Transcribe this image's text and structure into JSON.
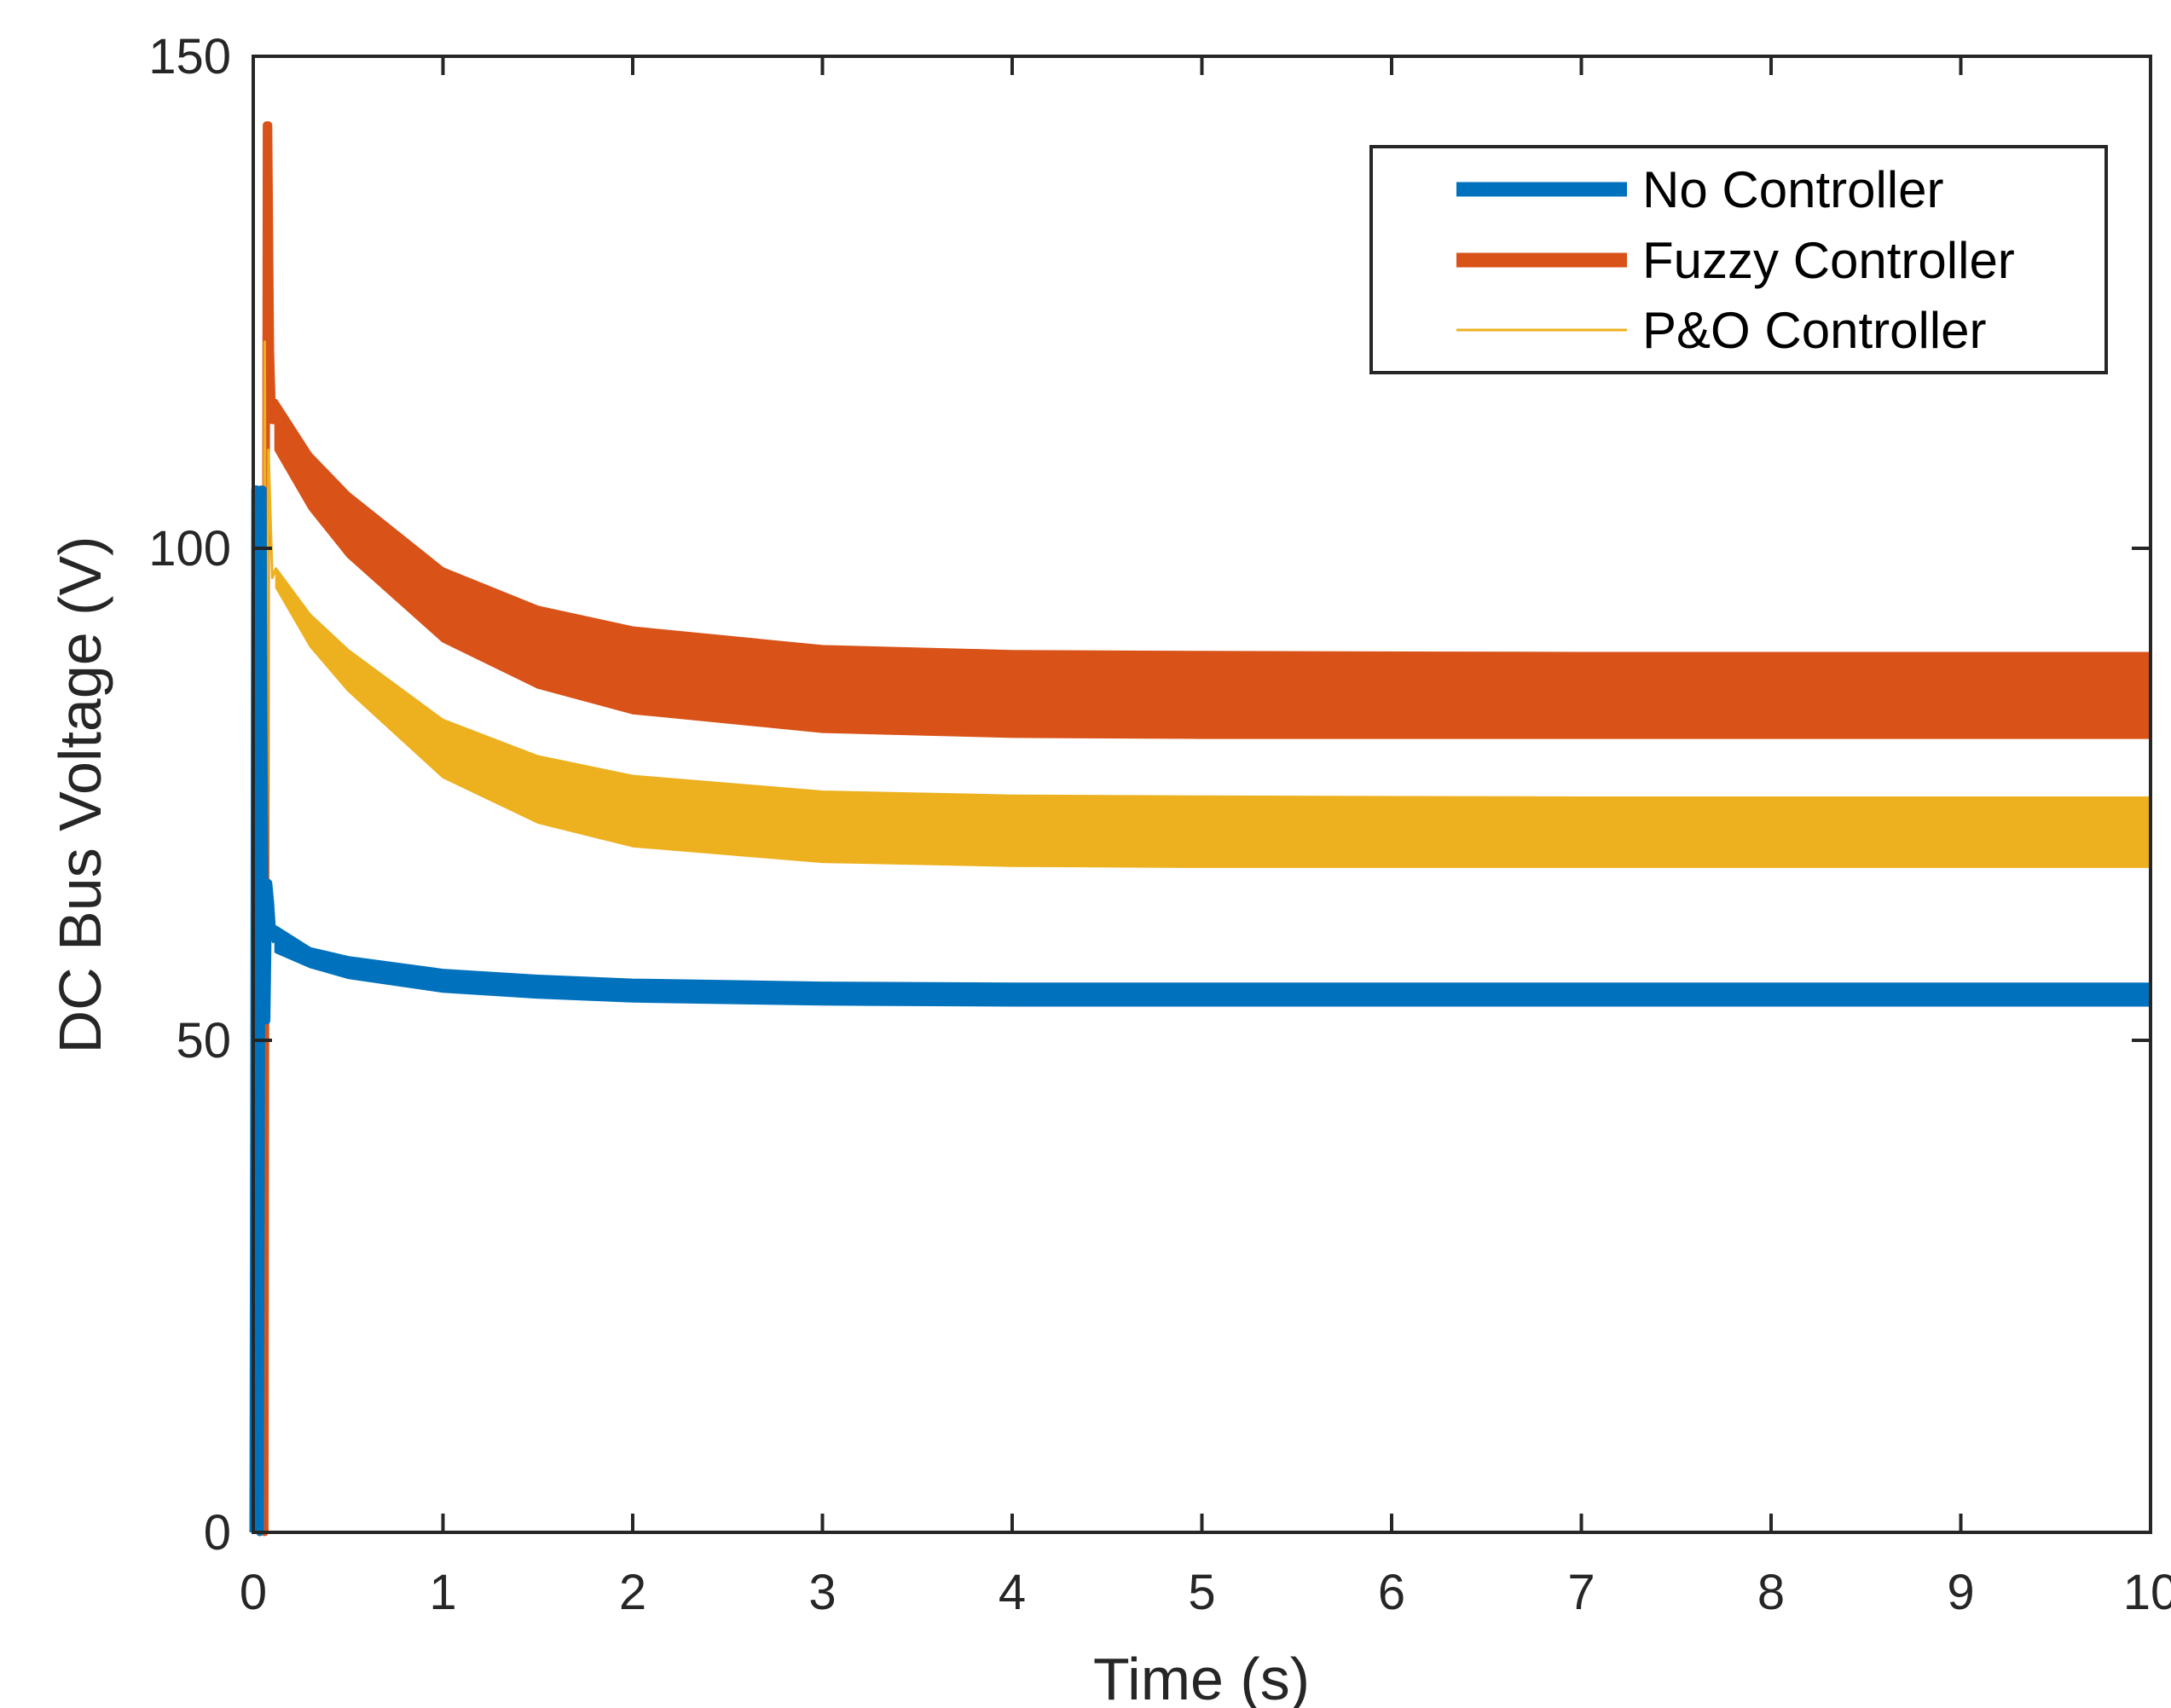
{
  "chart_data": {
    "type": "line",
    "title": "",
    "xlabel": "Time (s)",
    "ylabel": "DC Bus Voltage (V)",
    "xlim": [
      0,
      10
    ],
    "ylim": [
      0,
      150
    ],
    "xticks": [
      "0",
      "1",
      "2",
      "3",
      "4",
      "5",
      "6",
      "7",
      "8",
      "9",
      "10"
    ],
    "yticks": [
      "0",
      "50",
      "100",
      "150"
    ],
    "grid": false,
    "legend_position": "top-right",
    "series": [
      {
        "name": "No Controller",
        "color": "#0072BD",
        "style": "thick",
        "spike": {
          "t": [
            0.0,
            0.01,
            0.02,
            0.035,
            0.05,
            0.06,
            0.07,
            0.08,
            0.09,
            0.1,
            0.12
          ],
          "v": [
            0,
            106,
            106,
            0,
            106,
            60,
            52,
            66,
            64,
            61,
            60
          ]
        },
        "band": {
          "t": [
            0.12,
            0.3,
            0.5,
            1,
            1.5,
            2,
            3,
            4,
            5,
            7,
            10
          ],
          "upper": [
            61.5,
            59.3,
            58.4,
            57.1,
            56.5,
            56.1,
            55.8,
            55.7,
            55.7,
            55.7,
            55.7
          ],
          "lower": [
            59.0,
            57.5,
            56.4,
            55.0,
            54.4,
            54.0,
            53.7,
            53.6,
            53.6,
            53.6,
            53.6
          ]
        }
      },
      {
        "name": "Fuzzy Controller",
        "color": "#D95319",
        "style": "thick",
        "spike": {
          "t": [
            0.0,
            0.02,
            0.04,
            0.06,
            0.07,
            0.08,
            0.09,
            0.1,
            0.12
          ],
          "v": [
            0,
            50,
            106,
            0,
            143,
            143,
            120,
            113,
            113
          ]
        },
        "band": {
          "t": [
            0.12,
            0.3,
            0.5,
            1,
            1.5,
            2,
            3,
            4,
            5,
            7,
            10
          ],
          "upper": [
            115.0,
            109.6,
            105.6,
            97.9,
            94.0,
            91.9,
            90.0,
            89.5,
            89.4,
            89.3,
            89.3
          ],
          "lower": [
            110.0,
            104.0,
            99.2,
            90.6,
            85.9,
            83.3,
            81.4,
            80.9,
            80.8,
            80.8,
            80.8
          ]
        }
      },
      {
        "name": "P&O Controller",
        "color": "#EDB120",
        "style": "thin",
        "spike": {
          "t": [
            0.0,
            0.02,
            0.03,
            0.04,
            0.05,
            0.06,
            0.07,
            0.08,
            0.1,
            0.12
          ],
          "v": [
            0,
            88,
            60,
            89,
            53,
            121,
            55,
            110,
            97,
            98
          ]
        },
        "band": {
          "t": [
            0.12,
            0.3,
            0.5,
            1,
            1.5,
            2,
            3,
            4,
            5,
            7,
            10
          ],
          "upper": [
            98.0,
            93.3,
            89.7,
            82.6,
            78.9,
            76.9,
            75.3,
            74.9,
            74.8,
            74.7,
            74.7
          ],
          "lower": [
            96.0,
            90.0,
            85.5,
            76.7,
            72.1,
            69.7,
            68.1,
            67.7,
            67.6,
            67.6,
            67.6
          ]
        }
      }
    ]
  }
}
